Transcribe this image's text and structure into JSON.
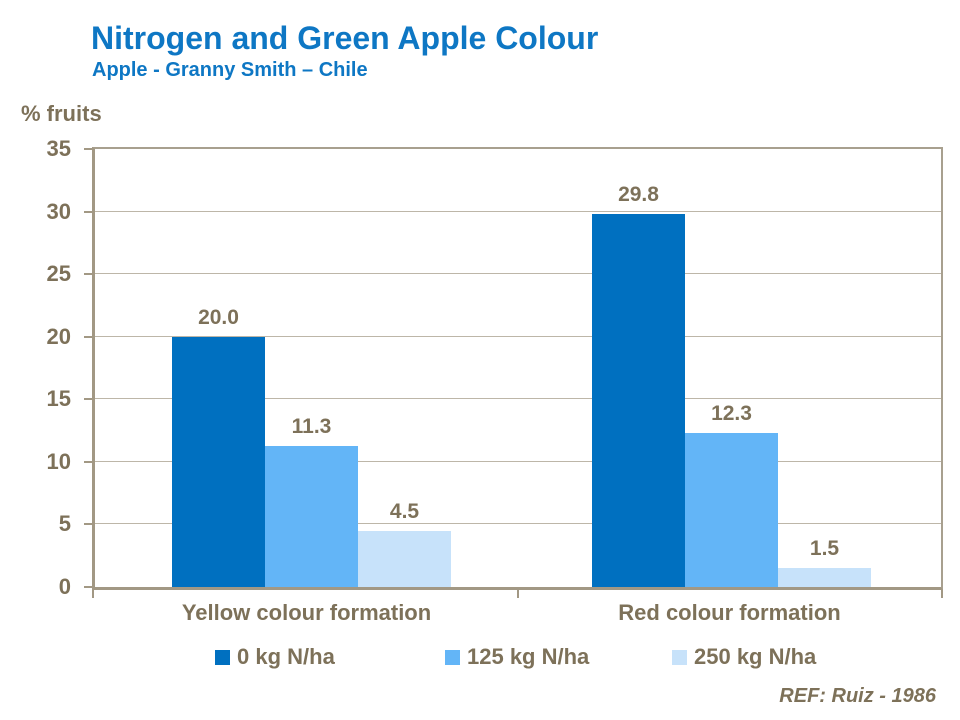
{
  "slide": {
    "title": "Nitrogen and Green Apple Colour",
    "subtitle": "Apple - Granny Smith – Chile",
    "reference": "REF: Ruiz - 1986"
  },
  "colors": {
    "title_blue": "#0E77C4",
    "text_brown": "#7D7159",
    "axis_line": "#A29884",
    "border_line": "#A8A08F",
    "gridline": "#BDB6A8",
    "series": [
      "#0070C0",
      "#63B5F7",
      "#C7E2FA"
    ]
  },
  "chart_data": {
    "type": "bar",
    "title": "Nitrogen and Green Apple Colour",
    "subtitle": "Apple - Granny Smith – Chile",
    "xlabel": "",
    "ylabel": "% fruits",
    "ylim": [
      0,
      35
    ],
    "yticks": [
      0,
      5,
      10,
      15,
      20,
      25,
      30,
      35
    ],
    "grid": true,
    "legend_position": "bottom",
    "categories": [
      "Yellow colour formation",
      "Red colour formation"
    ],
    "series": [
      {
        "name": "0 kg N/ha",
        "values": [
          20.0,
          29.8
        ]
      },
      {
        "name": "125 kg N/ha",
        "values": [
          11.3,
          12.3
        ]
      },
      {
        "name": "250 kg N/ha",
        "values": [
          4.5,
          1.5
        ]
      }
    ],
    "data_label_format": "0.0",
    "annotation": "REF: Ruiz - 1986"
  }
}
